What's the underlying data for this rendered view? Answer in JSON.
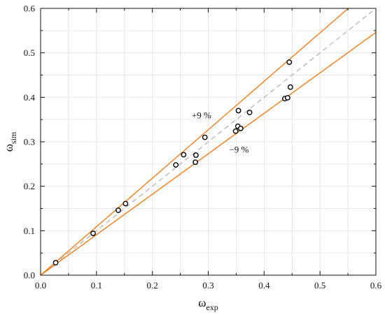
{
  "chart_data": {
    "type": "scatter",
    "xlabel_main": "ω",
    "xlabel_sub": "exp",
    "ylabel_main": "ω",
    "ylabel_sub": "sim",
    "xlim": [
      0,
      0.6
    ],
    "ylim": [
      0,
      0.6
    ],
    "x_ticks": [
      "0.0",
      "0.1",
      "0.2",
      "0.3",
      "0.4",
      "0.5",
      "0.6"
    ],
    "y_ticks": [
      "0.0",
      "0.1",
      "0.2",
      "0.3",
      "0.4",
      "0.5",
      "0.6"
    ],
    "grid": true,
    "points": [
      {
        "x": 0.027,
        "y": 0.028
      },
      {
        "x": 0.094,
        "y": 0.094
      },
      {
        "x": 0.139,
        "y": 0.146
      },
      {
        "x": 0.152,
        "y": 0.161
      },
      {
        "x": 0.242,
        "y": 0.248
      },
      {
        "x": 0.256,
        "y": 0.271
      },
      {
        "x": 0.277,
        "y": 0.254
      },
      {
        "x": 0.278,
        "y": 0.27
      },
      {
        "x": 0.294,
        "y": 0.31
      },
      {
        "x": 0.349,
        "y": 0.324
      },
      {
        "x": 0.353,
        "y": 0.335
      },
      {
        "x": 0.354,
        "y": 0.37
      },
      {
        "x": 0.358,
        "y": 0.33
      },
      {
        "x": 0.374,
        "y": 0.366
      },
      {
        "x": 0.437,
        "y": 0.397
      },
      {
        "x": 0.442,
        "y": 0.399
      },
      {
        "x": 0.445,
        "y": 0.479
      },
      {
        "x": 0.447,
        "y": 0.423
      }
    ],
    "reference_lines": [
      {
        "slope": 1.0,
        "style": "dashed",
        "color": "#b0b0b0"
      },
      {
        "slope": 1.09,
        "style": "solid",
        "color": "#f07d1a"
      },
      {
        "slope": 0.91,
        "style": "solid",
        "color": "#f07d1a"
      }
    ],
    "annotations": [
      {
        "text": "+9 %",
        "x": 0.288,
        "y": 0.353
      },
      {
        "text": "−9 %",
        "x": 0.355,
        "y": 0.276
      }
    ]
  }
}
